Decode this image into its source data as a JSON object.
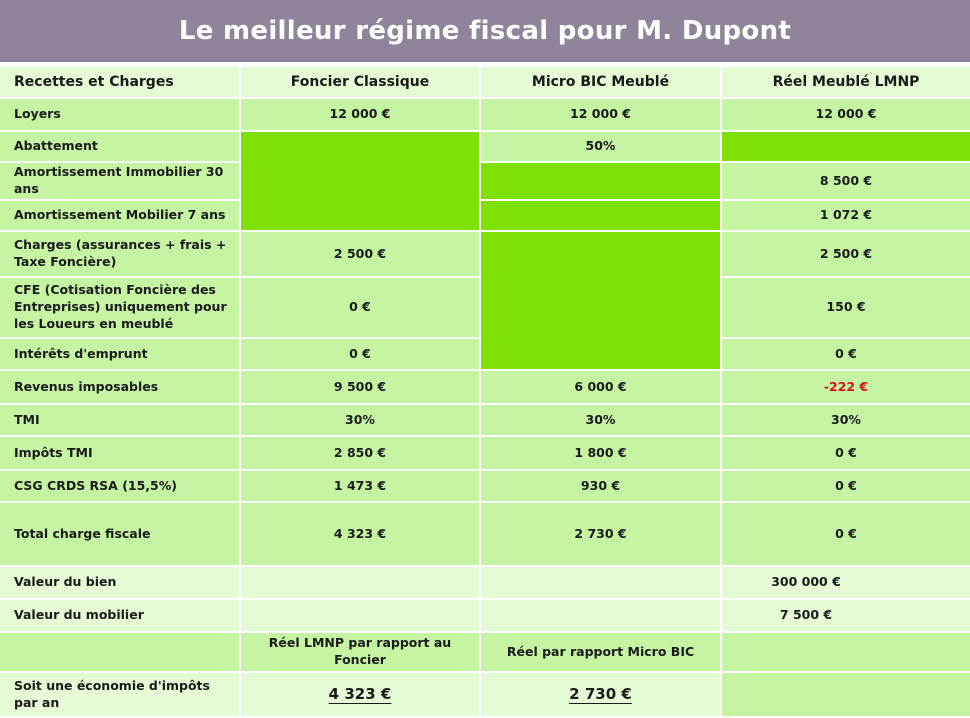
{
  "title": "Le meilleur régime fiscal pour M. Dupont",
  "colors": {
    "title_bar": "#8f8499",
    "cell": "#c5f4a3",
    "cell_alt": "#e5fbd5",
    "highlight": "#7fe005",
    "negative": "#d41414"
  },
  "columns": [
    "Recettes et Charges",
    "Foncier Classique",
    "Micro BIC Meublé",
    "Réel Meublé LMNP"
  ],
  "rows": [
    {
      "label": "Loyers",
      "values": [
        "12 000 €",
        "12 000 €",
        "12 000 €"
      ]
    },
    {
      "label": "Abattement",
      "values": [
        "",
        "50%",
        ""
      ]
    },
    {
      "label": "Amortissement Immobilier 30 ans",
      "values": [
        "",
        "",
        "8 500 €"
      ]
    },
    {
      "label": "Amortissement Mobilier 7 ans",
      "values": [
        "",
        "",
        "1 072 €"
      ]
    },
    {
      "label": "Charges (assurances + frais + Taxe Foncière)",
      "values": [
        "2 500 €",
        "",
        "2 500 €"
      ]
    },
    {
      "label": "CFE (Cotisation Foncière des Entreprises) uniquement pour les Loueurs en meublé",
      "values": [
        "0 €",
        "",
        "150 €"
      ]
    },
    {
      "label": "Intérêts d'emprunt",
      "values": [
        "0 €",
        "",
        "0 €"
      ]
    },
    {
      "label": "Revenus imposables",
      "values": [
        "9 500 €",
        "6 000 €",
        "-222 €"
      ]
    },
    {
      "label": "TMI",
      "values": [
        "30%",
        "30%",
        "30%"
      ]
    },
    {
      "label": "Impôts TMI",
      "values": [
        "2 850 €",
        "1 800 €",
        "0 €"
      ]
    },
    {
      "label": "CSG CRDS RSA (15,5%)",
      "values": [
        "1 473 €",
        "930 €",
        "0 €"
      ]
    },
    {
      "label": "Total charge fiscale",
      "values": [
        "4 323 €",
        "2 730 €",
        "0 €"
      ]
    },
    {
      "label": "Valeur du bien",
      "values": [
        "",
        "",
        "300 000 €"
      ]
    },
    {
      "label": "Valeur du mobilier",
      "values": [
        "",
        "",
        "7 500 €"
      ]
    },
    {
      "label": "",
      "values": [
        "Réel LMNP par rapport au Foncier",
        "Réel par rapport Micro BIC",
        ""
      ]
    },
    {
      "label": "Soit une économie d'impôts par an",
      "values": [
        "4 323 €",
        "2 730 €",
        ""
      ]
    }
  ]
}
